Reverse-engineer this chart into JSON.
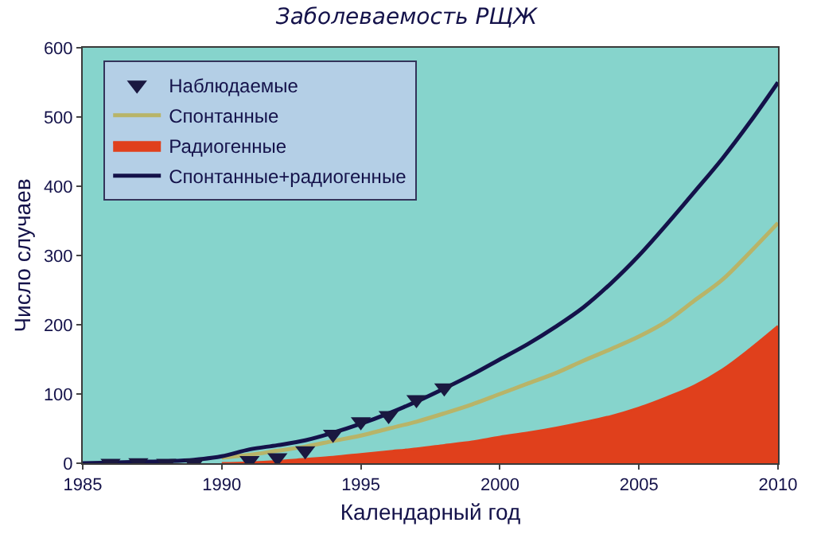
{
  "chart_data": {
    "type": "line",
    "title": "Заболеваемость РЩЖ",
    "xlabel": "Календарный год",
    "ylabel": "Число случаев",
    "x": [
      1985,
      1986,
      1987,
      1988,
      1989,
      1990,
      1991,
      1992,
      1993,
      1994,
      1995,
      1996,
      1997,
      1998,
      1999,
      2000,
      2001,
      2002,
      2003,
      2004,
      2005,
      2006,
      2007,
      2008,
      2009,
      2010
    ],
    "xlim": [
      1985,
      2010
    ],
    "xticks": [
      1985,
      1990,
      1995,
      2000,
      2005,
      2010
    ],
    "ylim": [
      0,
      600
    ],
    "yticks": [
      0,
      100,
      200,
      300,
      400,
      500,
      600
    ],
    "grid": false,
    "legend": "top left",
    "series": [
      {
        "name": "Радиогенные",
        "type": "area",
        "color": "#e0401c",
        "values": [
          null,
          null,
          null,
          null,
          null,
          0,
          1,
          3,
          6,
          9,
          13,
          17,
          21,
          26,
          31,
          38,
          44,
          51,
          59,
          68,
          80,
          95,
          112,
          135,
          165,
          198
        ]
      },
      {
        "name": "Спонтанные",
        "color": "#b8b468",
        "values": [
          null,
          null,
          null,
          null,
          null,
          8,
          12,
          18,
          24,
          32,
          40,
          50,
          60,
          72,
          85,
          100,
          115,
          130,
          148,
          165,
          183,
          205,
          235,
          265,
          305,
          347
        ]
      },
      {
        "name": "Спонтанные+радиогенные",
        "color": "#14124a",
        "values": [
          0,
          1,
          2,
          3,
          5,
          10,
          20,
          26,
          33,
          44,
          57,
          72,
          89,
          108,
          128,
          150,
          172,
          197,
          225,
          260,
          300,
          345,
          392,
          440,
          493,
          550
        ]
      },
      {
        "name": "Наблюдаемые",
        "type": "scatter",
        "marker": "triangle",
        "color": "#1a1840",
        "x": [
          1986,
          1987,
          1988,
          1989,
          1991,
          1992,
          1993,
          1994,
          1995,
          1996,
          1997,
          1998
        ],
        "values": [
          0,
          1,
          0,
          0,
          4,
          8,
          18,
          42,
          60,
          69,
          92,
          109
        ]
      }
    ]
  }
}
